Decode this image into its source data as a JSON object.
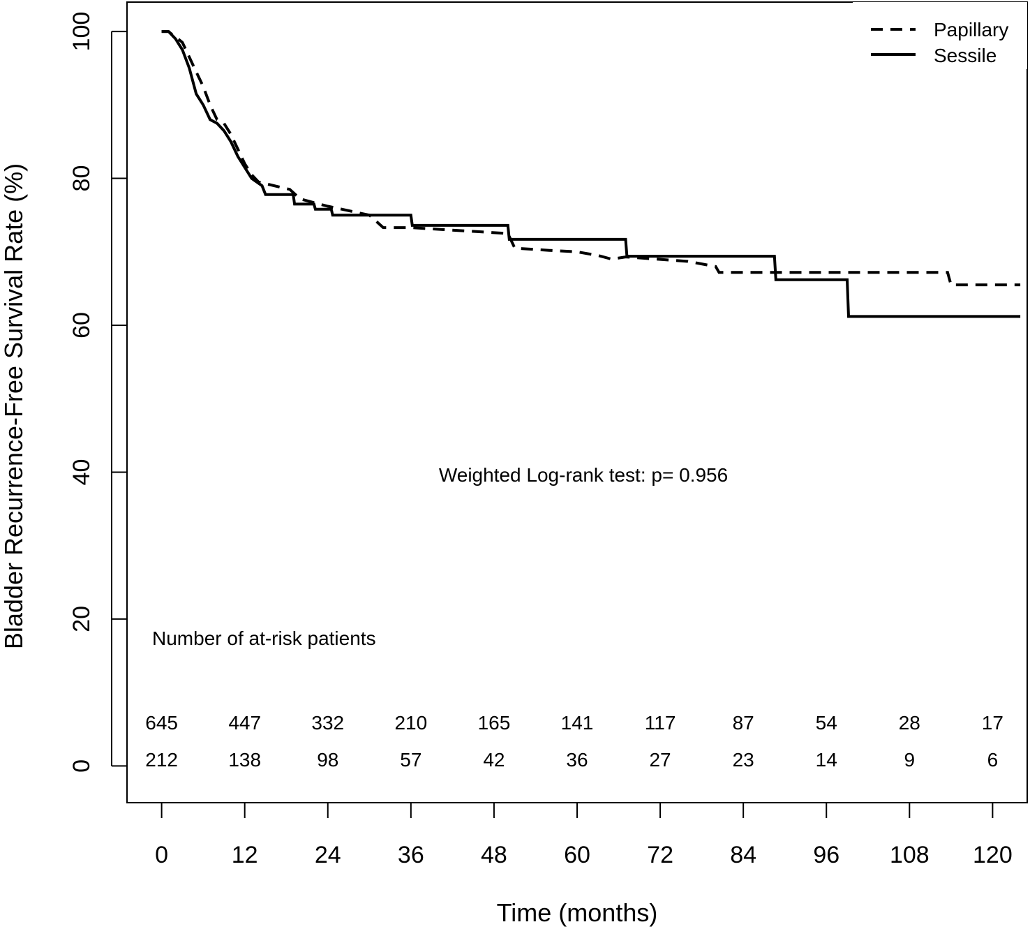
{
  "chart_data": {
    "type": "line",
    "title": "",
    "xlabel": "Time (months)",
    "ylabel": "Bladder Recurrence-Free Survival Rate (%)",
    "xlim": [
      -5,
      125
    ],
    "ylim": [
      -5,
      104
    ],
    "x_ticks": [
      0,
      12,
      24,
      36,
      48,
      60,
      72,
      84,
      96,
      108,
      120
    ],
    "y_ticks": [
      0,
      20,
      40,
      60,
      80,
      100
    ],
    "legend_position": "top-right",
    "series": [
      {
        "name": "Papillary",
        "style": "dashed",
        "color": "#000000",
        "points": [
          [
            0,
            100
          ],
          [
            1,
            100
          ],
          [
            1.5,
            99.6
          ],
          [
            2,
            99.3
          ],
          [
            3,
            98.5
          ],
          [
            4,
            96.5
          ],
          [
            5,
            94.5
          ],
          [
            6,
            92.5
          ],
          [
            7,
            90
          ],
          [
            8,
            88
          ],
          [
            9,
            87.5
          ],
          [
            10,
            86
          ],
          [
            11,
            84
          ],
          [
            12,
            82
          ],
          [
            13,
            80.5
          ],
          [
            14,
            79.5
          ],
          [
            18.5,
            78.5
          ],
          [
            20,
            77.2
          ],
          [
            22,
            76.7
          ],
          [
            24,
            76.2
          ],
          [
            26,
            75.8
          ],
          [
            28,
            75.4
          ],
          [
            30,
            75
          ],
          [
            32,
            73.3
          ],
          [
            36,
            73.3
          ],
          [
            50,
            72.5
          ],
          [
            51,
            70.5
          ],
          [
            56,
            70.2
          ],
          [
            60,
            70
          ],
          [
            63,
            69.5
          ],
          [
            65,
            69
          ],
          [
            67,
            69.3
          ],
          [
            76,
            68.7
          ],
          [
            80,
            68
          ],
          [
            80.5,
            67.2
          ],
          [
            108,
            67.2
          ],
          [
            113.5,
            67.2
          ],
          [
            114,
            65.5
          ],
          [
            124,
            65.5
          ]
        ]
      },
      {
        "name": "Sessile",
        "style": "solid",
        "color": "#000000",
        "points": [
          [
            0,
            100
          ],
          [
            1,
            100
          ],
          [
            1.5,
            99.5
          ],
          [
            2,
            99
          ],
          [
            3,
            97.5
          ],
          [
            4,
            95
          ],
          [
            5,
            91.5
          ],
          [
            6,
            90
          ],
          [
            7,
            88
          ],
          [
            8,
            87.5
          ],
          [
            9,
            86.5
          ],
          [
            10,
            85
          ],
          [
            11,
            83
          ],
          [
            12,
            81.5
          ],
          [
            13,
            80
          ],
          [
            14.5,
            79
          ],
          [
            15,
            77.8
          ],
          [
            19,
            77.8
          ],
          [
            19.2,
            76.5
          ],
          [
            22,
            76.5
          ],
          [
            22.2,
            75.8
          ],
          [
            24.5,
            75.8
          ],
          [
            24.7,
            75
          ],
          [
            36,
            75
          ],
          [
            36.2,
            73.6
          ],
          [
            50,
            73.6
          ],
          [
            50.2,
            71.7
          ],
          [
            67,
            71.7
          ],
          [
            67.2,
            69.4
          ],
          [
            88.5,
            69.4
          ],
          [
            88.7,
            66.2
          ],
          [
            99,
            66.2
          ],
          [
            99.2,
            61.2
          ],
          [
            124,
            61.2
          ]
        ]
      }
    ],
    "annotation": "Weighted Log-rank test: p= 0.956",
    "at_risk": {
      "heading": "Number of at-risk patients",
      "times": [
        0,
        12,
        24,
        36,
        48,
        60,
        72,
        84,
        96,
        108,
        120
      ],
      "rows": [
        {
          "name": "Papillary",
          "values": [
            "645",
            "447",
            "332",
            "210",
            "165",
            "141",
            "117",
            "87",
            "54",
            "28",
            "17"
          ]
        },
        {
          "name": "Sessile",
          "values": [
            "212",
            "138",
            "98",
            "57",
            "42",
            "36",
            "27",
            "23",
            "14",
            "9",
            "6"
          ]
        }
      ]
    }
  }
}
